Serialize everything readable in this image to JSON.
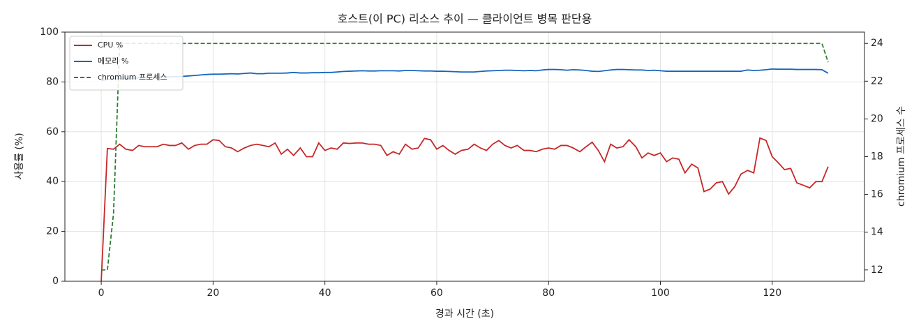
{
  "chart_data": {
    "type": "line",
    "title": "호스트(이 PC) 리소스 추이 — 클라이언트 병목 판단용",
    "xlabel": "경과 시간 (초)",
    "ylabel": "사용률 (%)",
    "y2label": "chromium 프로세스 수",
    "xlim": [
      -6.5,
      136.5
    ],
    "xticks": [
      0,
      20,
      40,
      60,
      80,
      100,
      120
    ],
    "ylim": [
      0,
      100
    ],
    "yticks": [
      0,
      20,
      40,
      60,
      80,
      100
    ],
    "y2lim": [
      11.4,
      24.6
    ],
    "y2ticks": [
      12,
      14,
      16,
      18,
      20,
      22,
      24
    ],
    "grid": true,
    "legend": "upper left",
    "x": [
      0,
      1.1,
      2.2,
      3.3,
      4.4,
      5.6,
      6.7,
      7.8,
      8.9,
      10,
      11.1,
      12.2,
      13.3,
      14.4,
      15.6,
      16.7,
      17.8,
      18.9,
      20,
      21.1,
      22.2,
      23.3,
      24.4,
      25.6,
      26.7,
      27.8,
      28.9,
      30,
      31.1,
      32.2,
      33.3,
      34.4,
      35.6,
      36.7,
      37.8,
      38.9,
      40,
      41.1,
      42.2,
      43.3,
      44.4,
      45.6,
      46.7,
      47.8,
      48.9,
      50,
      51.1,
      52.2,
      53.3,
      54.4,
      55.6,
      56.7,
      57.8,
      58.9,
      60,
      61.1,
      62.2,
      63.3,
      64.4,
      65.6,
      66.7,
      67.8,
      68.9,
      70,
      71.1,
      72.2,
      73.3,
      74.4,
      75.6,
      76.7,
      77.8,
      78.9,
      80,
      81.1,
      82.2,
      83.3,
      84.4,
      85.6,
      86.7,
      87.8,
      88.9,
      90,
      91.1,
      92.2,
      93.3,
      94.4,
      95.6,
      96.7,
      97.8,
      98.9,
      100,
      101.1,
      102.2,
      103.3,
      104.4,
      105.6,
      106.7,
      107.8,
      108.9,
      110,
      111.1,
      112.2,
      113.3,
      114.4,
      115.6,
      116.7,
      117.8,
      118.9,
      120,
      121.1,
      122.2,
      123.3,
      124.4,
      125.6,
      126.7,
      127.8,
      128.9,
      130
    ],
    "series": [
      {
        "name": "CPU %",
        "color": "#c62828",
        "linestyle": "solid",
        "values": [
          0,
          53.3,
          53,
          55,
          53,
          52.5,
          54.5,
          54,
          54,
          54,
          55,
          54.5,
          54.5,
          55.5,
          53,
          54.5,
          55,
          55,
          56.8,
          56.5,
          54,
          53.5,
          52,
          53.5,
          54.5,
          55,
          54.5,
          54,
          55.5,
          51,
          53,
          50.5,
          53.5,
          50,
          50,
          55.5,
          52.5,
          53.5,
          53,
          55.5,
          55.3,
          55.5,
          55.5,
          55,
          55,
          54.5,
          50.5,
          52,
          51,
          55,
          53,
          53.5,
          57.3,
          56.8,
          53,
          54.5,
          52.5,
          51,
          52.5,
          53,
          55,
          53.5,
          52.5,
          55,
          56.5,
          54.5,
          53.5,
          54.5,
          52.5,
          52.5,
          52,
          53,
          53.5,
          53,
          54.5,
          54.5,
          53.5,
          52,
          54,
          55.8,
          52.5,
          48,
          55,
          53.5,
          54,
          56.8,
          54,
          49.5,
          51.5,
          50.5,
          51.5,
          48,
          49.5,
          49,
          43.5,
          47,
          45.5,
          36,
          37,
          39.5,
          40,
          35,
          38,
          43,
          44.5,
          43.5,
          57.5,
          56.5,
          50,
          47.5,
          44.8,
          45.3,
          39.5,
          38.5,
          37.5,
          40,
          40,
          46
        ]
      },
      {
        "name": "메모리 %",
        "color": "#1565c0",
        "linestyle": "solid",
        "values": [
          80.5,
          81,
          81.2,
          81.3,
          81.4,
          81.5,
          81.6,
          81.7,
          81.8,
          81.9,
          82,
          82,
          82.1,
          82.2,
          82.4,
          82.6,
          82.8,
          83,
          83.1,
          83.1,
          83.2,
          83.3,
          83.2,
          83.4,
          83.6,
          83.3,
          83.3,
          83.5,
          83.5,
          83.5,
          83.6,
          83.8,
          83.6,
          83.6,
          83.7,
          83.7,
          83.8,
          83.8,
          84,
          84.2,
          84.3,
          84.4,
          84.5,
          84.4,
          84.4,
          84.5,
          84.5,
          84.5,
          84.4,
          84.6,
          84.6,
          84.5,
          84.4,
          84.4,
          84.3,
          84.3,
          84.2,
          84.1,
          84,
          84,
          84,
          84.2,
          84.4,
          84.5,
          84.6,
          84.7,
          84.7,
          84.6,
          84.5,
          84.6,
          84.5,
          84.8,
          85,
          85,
          84.9,
          84.7,
          84.9,
          84.8,
          84.6,
          84.3,
          84.2,
          84.5,
          84.8,
          85,
          85,
          84.9,
          84.8,
          84.8,
          84.6,
          84.7,
          84.5,
          84.3,
          84.3,
          84.3,
          84.3,
          84.3,
          84.3,
          84.3,
          84.3,
          84.3,
          84.3,
          84.3,
          84.3,
          84.3,
          84.8,
          84.6,
          84.7,
          84.9,
          85.2,
          85.1,
          85.1,
          85.1,
          85,
          85,
          85,
          85,
          84.9,
          83.5
        ]
      },
      {
        "name": "chromium 프로세스",
        "color": "#2e7d32",
        "linestyle": "dashed",
        "axis": "y2",
        "values": [
          12,
          12,
          15,
          24,
          24,
          24,
          24,
          24,
          24,
          24,
          24,
          24,
          24,
          24,
          24,
          24,
          24,
          24,
          24,
          24,
          24,
          24,
          24,
          24,
          24,
          24,
          24,
          24,
          24,
          24,
          24,
          24,
          24,
          24,
          24,
          24,
          24,
          24,
          24,
          24,
          24,
          24,
          24,
          24,
          24,
          24,
          24,
          24,
          24,
          24,
          24,
          24,
          24,
          24,
          24,
          24,
          24,
          24,
          24,
          24,
          24,
          24,
          24,
          24,
          24,
          24,
          24,
          24,
          24,
          24,
          24,
          24,
          24,
          24,
          24,
          24,
          24,
          24,
          24,
          24,
          24,
          24,
          24,
          24,
          24,
          24,
          24,
          24,
          24,
          24,
          24,
          24,
          24,
          24,
          24,
          24,
          24,
          24,
          24,
          24,
          24,
          24,
          24,
          24,
          24,
          24,
          24,
          24,
          24,
          24,
          24,
          24,
          24,
          24,
          24,
          24,
          24,
          23
        ]
      }
    ]
  }
}
